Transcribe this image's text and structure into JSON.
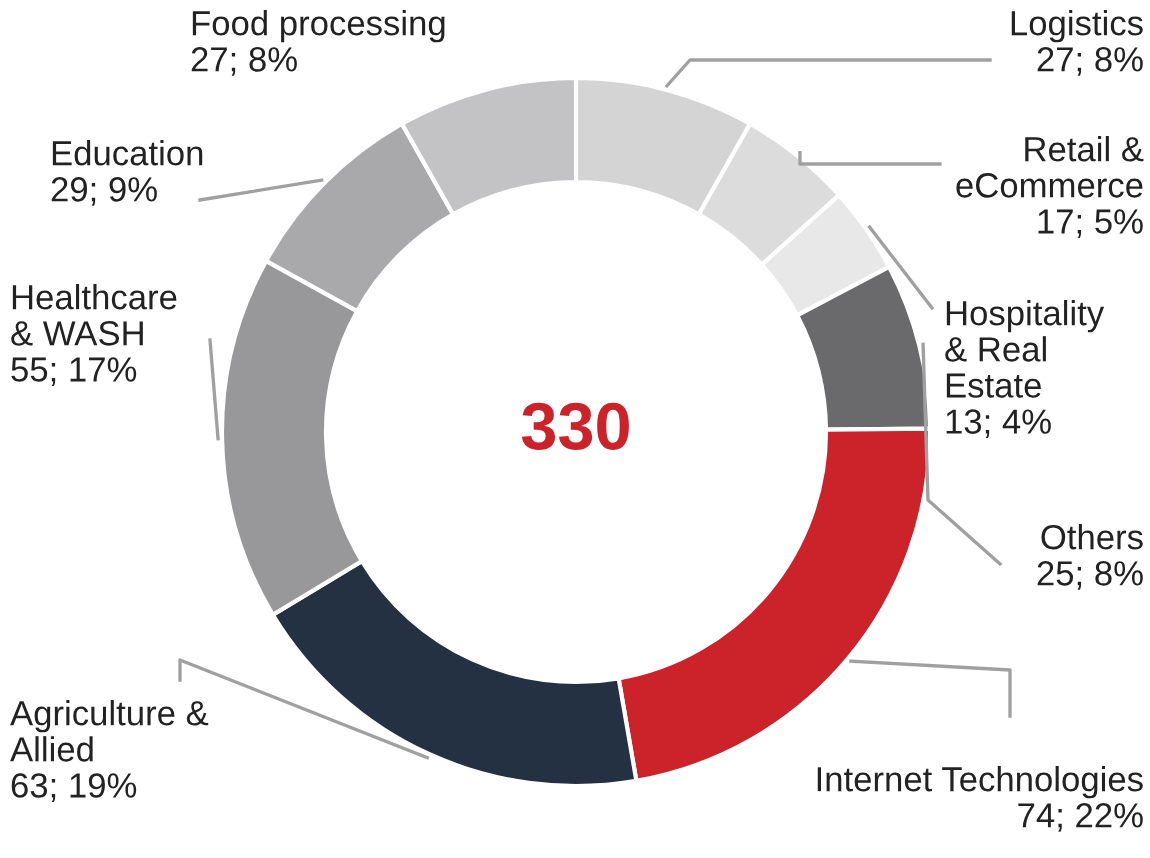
{
  "chart_data": {
    "type": "donut",
    "categories": [
      "Logistics",
      "Retail &\neCommerce",
      "Hospitality\n& Real\nEstate",
      "Others",
      "Internet Technologies",
      "Agriculture &\nAllied",
      "Healthcare\n& WASH",
      "Education",
      "Food processing"
    ],
    "values": [
      27,
      17,
      13,
      25,
      74,
      63,
      55,
      29,
      27
    ],
    "colors": [
      "#d4d4d5",
      "#dcdcdd",
      "#e8e8e9",
      "#6a6a6d",
      "#cc2229",
      "#233142",
      "#98989b",
      "#a9a9ab",
      "#c3c3c5"
    ],
    "value_labels": [
      "27; 8%",
      "17; 5%",
      "13; 4%",
      "25; 8%",
      "74; 22%",
      "63; 19%",
      "55; 17%",
      "29; 9%",
      "27; 8%"
    ],
    "annotations": [
      "330"
    ]
  }
}
